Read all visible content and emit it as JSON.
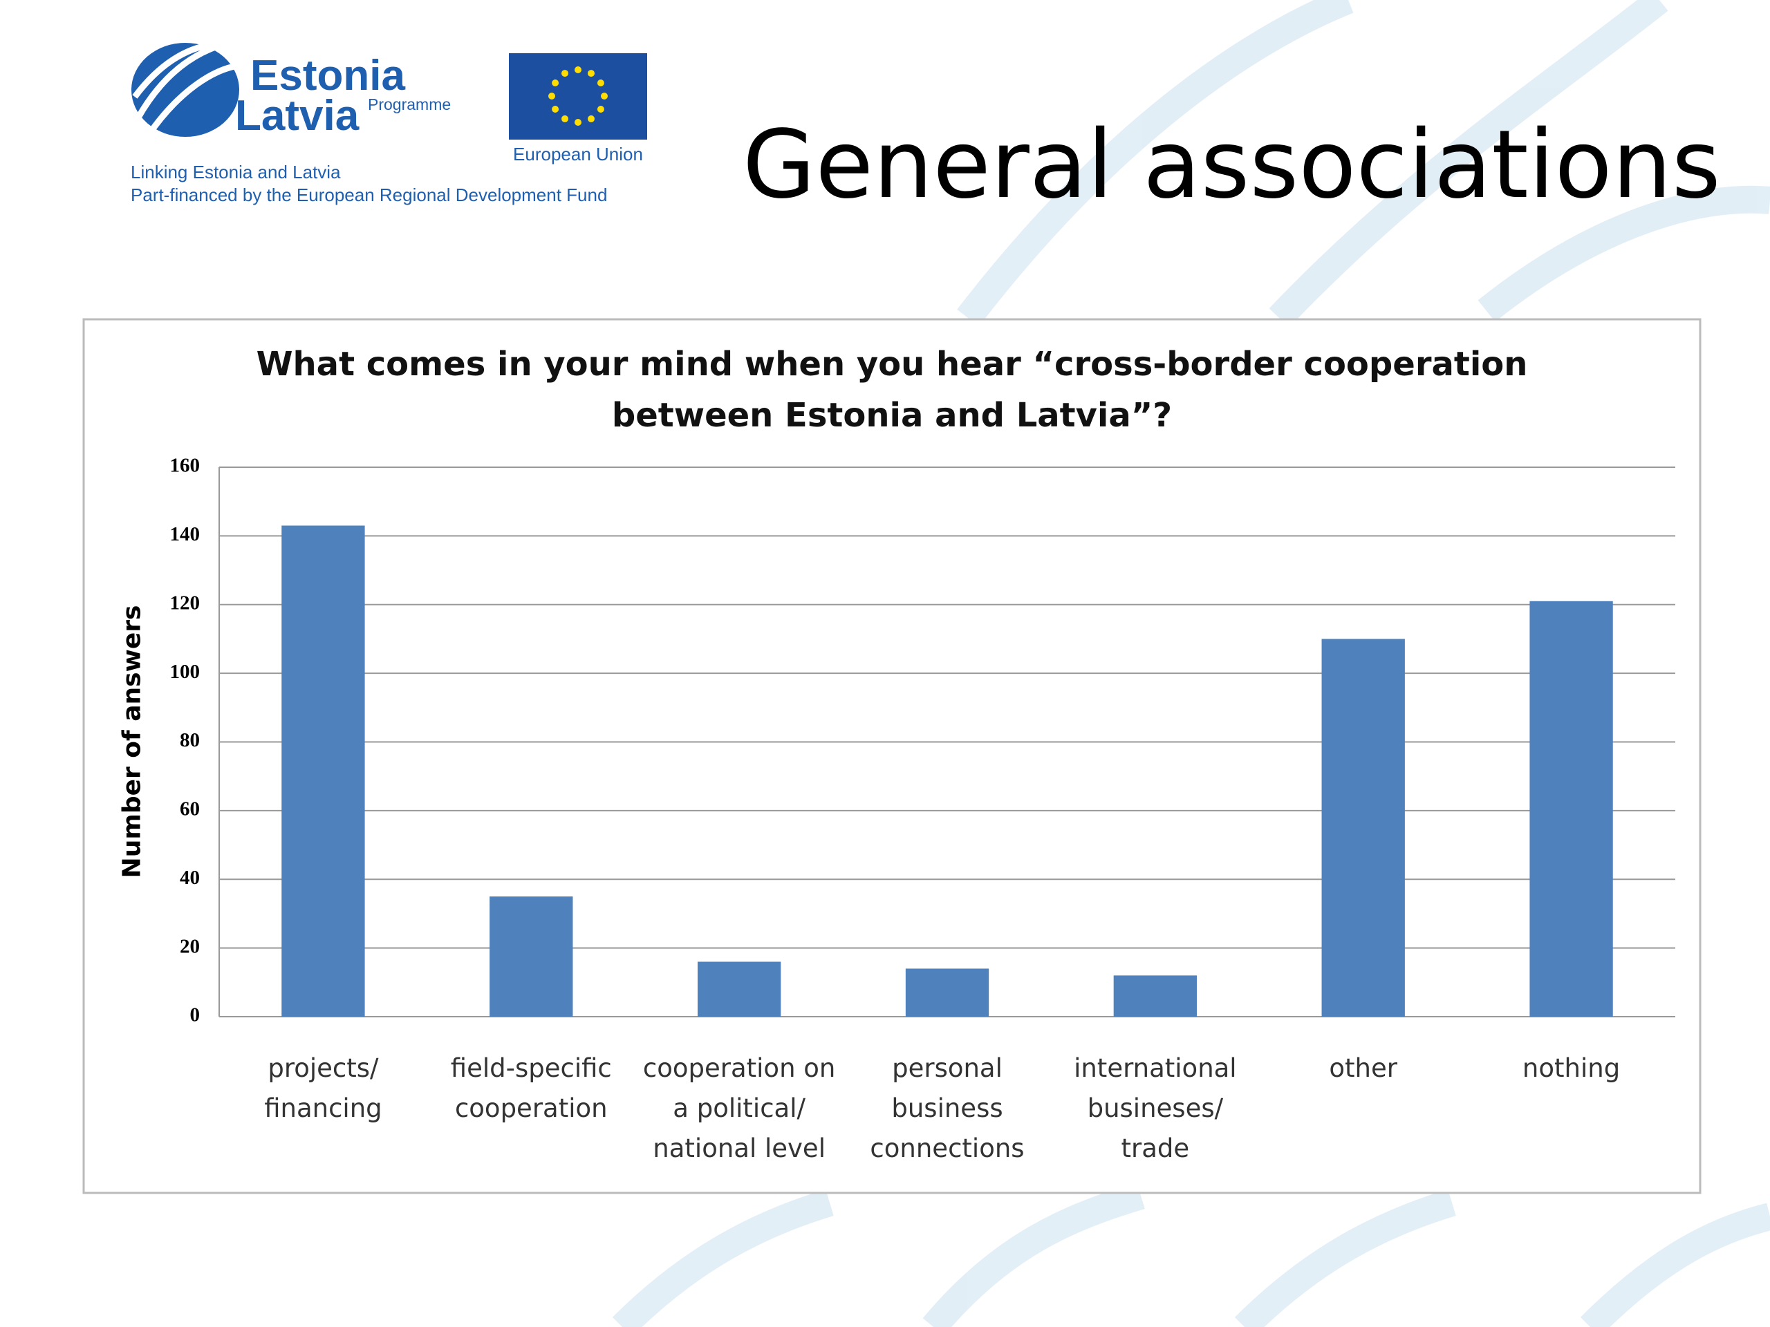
{
  "header": {
    "logo": {
      "line1": "Estonia",
      "line2": "Latvia",
      "tag": "Programme"
    },
    "eu_label": "European Union",
    "tagline1": "Linking Estonia and Latvia",
    "tagline2": "Part-financed by the European Regional Development Fund"
  },
  "slide_title": "General associations",
  "chart_data": {
    "type": "bar",
    "title": "What comes in your mind when you hear “cross-border cooperation\nbetween Estonia and Latvia”?",
    "y_label": "Number of answers",
    "categories": [
      "projects/\nfinancing",
      "field-specific\ncooperation",
      "cooperation on\na political/\nnational level",
      "personal\nbusiness\nconnections",
      "international\nbusineses/\ntrade",
      "other",
      "nothing"
    ],
    "values": [
      143,
      35,
      16,
      14,
      12,
      110,
      121
    ],
    "color": "#4f81bd",
    "ylim": [
      0,
      160
    ],
    "yticks": [
      0,
      20,
      40,
      60,
      80,
      100,
      120,
      140,
      160
    ],
    "grid": true
  }
}
